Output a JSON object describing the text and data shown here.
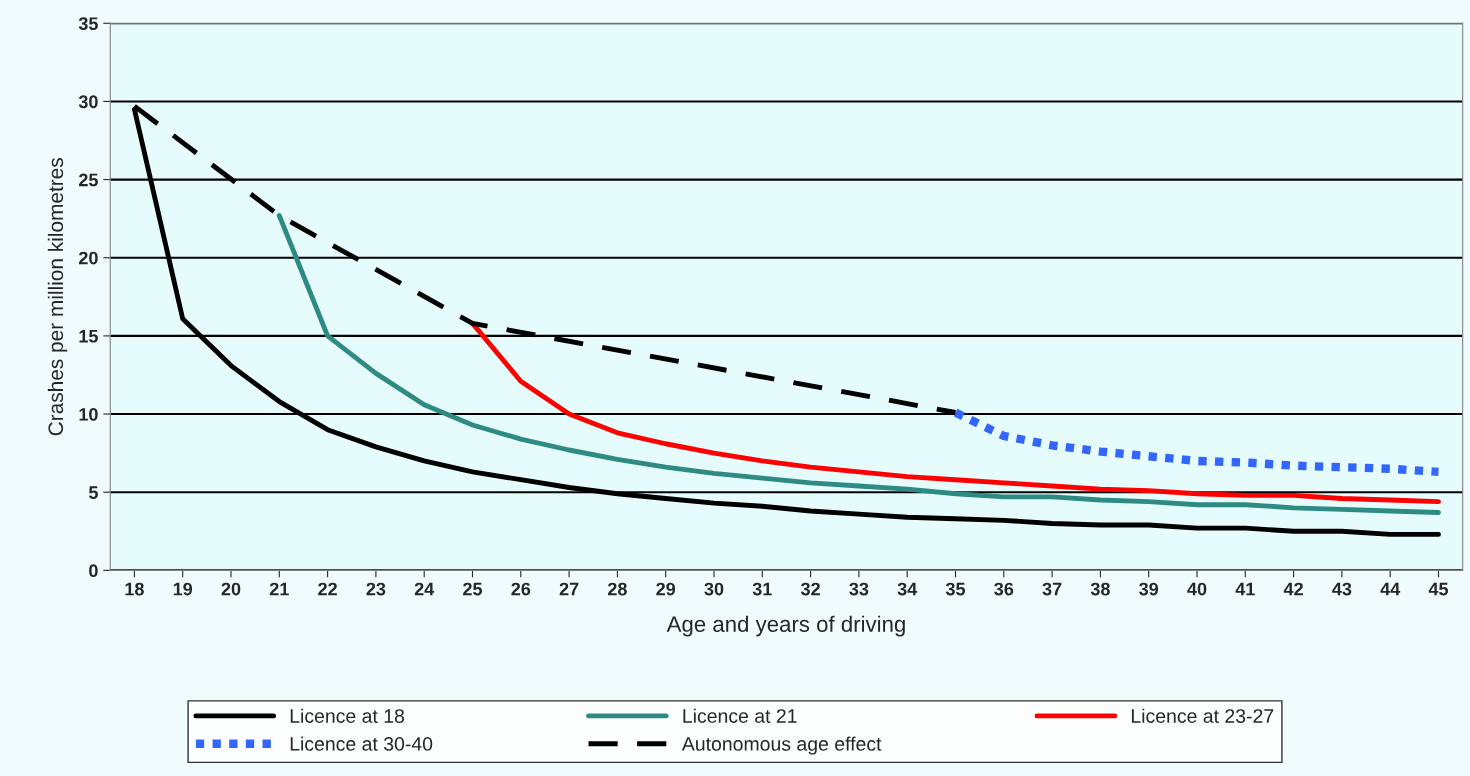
{
  "chart_data": {
    "type": "line",
    "xlabel": "Age and years of driving",
    "ylabel": "Crashes per million kilometres",
    "xlim": [
      17.5,
      45.5
    ],
    "xticks": [
      18,
      19,
      20,
      21,
      22,
      23,
      24,
      25,
      26,
      27,
      28,
      29,
      30,
      31,
      32,
      33,
      34,
      35,
      36,
      37,
      38,
      39,
      40,
      41,
      42,
      43,
      44,
      45
    ],
    "ylim": [
      0,
      35
    ],
    "yticks": [
      0,
      5,
      10,
      15,
      20,
      25,
      30,
      35
    ],
    "grid": "y",
    "legend": "bottom",
    "marker": "none",
    "series": [
      {
        "name": "Licence at 18",
        "color": "#000000",
        "line_style": "solid",
        "x": [
          18,
          19,
          20,
          21,
          22,
          23,
          24,
          25,
          26,
          27,
          28,
          29,
          30,
          31,
          32,
          33,
          34,
          35,
          36,
          37,
          38,
          39,
          40,
          41,
          42,
          43,
          44,
          45
        ],
        "values": [
          29.5,
          16.1,
          13.1,
          10.8,
          9.0,
          7.9,
          7.0,
          6.3,
          5.8,
          5.3,
          4.9,
          4.6,
          4.3,
          4.1,
          3.8,
          3.6,
          3.4,
          3.3,
          3.2,
          3.0,
          2.9,
          2.9,
          2.7,
          2.7,
          2.5,
          2.5,
          2.3,
          2.3
        ]
      },
      {
        "name": "Licence at 21",
        "color": "#2e8b84",
        "line_style": "solid",
        "x": [
          21,
          22,
          23,
          24,
          25,
          26,
          27,
          28,
          29,
          30,
          31,
          32,
          33,
          34,
          35,
          36,
          37,
          38,
          39,
          40,
          41,
          42,
          43,
          44,
          45
        ],
        "values": [
          22.7,
          15.0,
          12.6,
          10.6,
          9.3,
          8.4,
          7.7,
          7.1,
          6.6,
          6.2,
          5.9,
          5.6,
          5.4,
          5.2,
          4.9,
          4.7,
          4.7,
          4.5,
          4.4,
          4.2,
          4.2,
          4.0,
          3.9,
          3.8,
          3.7
        ]
      },
      {
        "name": "Licence at 23-27",
        "color": "#ff0000",
        "line_style": "solid",
        "x": [
          25,
          26,
          27,
          28,
          29,
          30,
          31,
          32,
          33,
          34,
          35,
          36,
          37,
          38,
          39,
          40,
          41,
          42,
          43,
          44,
          45
        ],
        "values": [
          15.8,
          12.1,
          10.0,
          8.8,
          8.1,
          7.5,
          7.0,
          6.6,
          6.3,
          6.0,
          5.8,
          5.6,
          5.4,
          5.2,
          5.1,
          4.9,
          4.8,
          4.8,
          4.6,
          4.5,
          4.4
        ]
      },
      {
        "name": "Licence at 30-40",
        "color": "#3366ff",
        "line_style": "dotted",
        "x": [
          35,
          36,
          37,
          38,
          39,
          40,
          41,
          42,
          43,
          44,
          45
        ],
        "values": [
          10.1,
          8.6,
          8.0,
          7.6,
          7.3,
          7.0,
          6.9,
          6.7,
          6.6,
          6.5,
          6.3
        ]
      },
      {
        "name": "Autonomous age effect",
        "color": "#000000",
        "line_style": "dashed",
        "x": [
          18,
          21,
          25,
          35
        ],
        "values": [
          29.7,
          22.7,
          15.8,
          10.1
        ]
      }
    ]
  }
}
